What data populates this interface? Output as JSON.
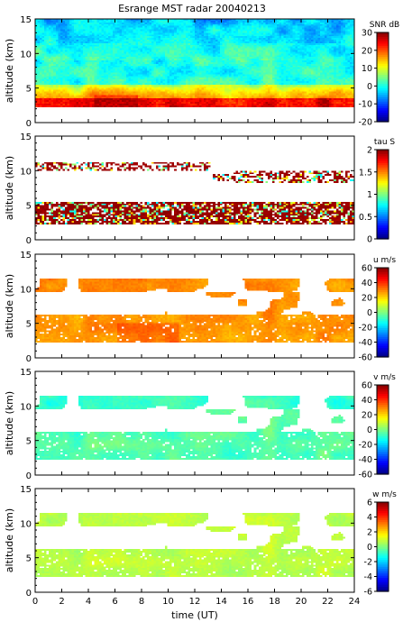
{
  "title": "Esrange MST radar 20040213",
  "chart_data": [
    {
      "type": "heatmap",
      "title": "Esrange MST radar 20040213",
      "ylabel": "altitude (km)",
      "xlabel": "",
      "xlim": [
        0,
        24
      ],
      "ylim": [
        0,
        15
      ],
      "y_ticks": [
        "0",
        "5",
        "10",
        "15"
      ],
      "colorbar": {
        "label": "SNR dB",
        "min": -20,
        "max": 30,
        "ticks": [
          "30",
          "20",
          "10",
          "0",
          "-10",
          "-20"
        ]
      },
      "pattern": "snr",
      "valid_altitude_km": [
        2.2,
        15
      ]
    },
    {
      "type": "heatmap",
      "ylabel": "altitude (km)",
      "xlabel": "",
      "xlim": [
        0,
        24
      ],
      "ylim": [
        0,
        15
      ],
      "y_ticks": [
        "0",
        "5",
        "10",
        "15"
      ],
      "colorbar": {
        "label": "tau S",
        "min": 0,
        "max": 2,
        "ticks": [
          "2",
          "1.5",
          "1",
          "0.5",
          "0"
        ]
      },
      "pattern": "tau",
      "valid_altitude_km": [
        2.2,
        12
      ]
    },
    {
      "type": "heatmap",
      "ylabel": "altitude (km)",
      "xlabel": "",
      "xlim": [
        0,
        24
      ],
      "ylim": [
        0,
        15
      ],
      "y_ticks": [
        "0",
        "5",
        "10",
        "15"
      ],
      "colorbar": {
        "label": "u m/s",
        "min": -60,
        "max": 60,
        "ticks": [
          "60",
          "40",
          "20",
          "0",
          "-20",
          "-40",
          "-60"
        ]
      },
      "pattern": "u",
      "valid_altitude_km": [
        2.2,
        12
      ]
    },
    {
      "type": "heatmap",
      "ylabel": "altitude (km)",
      "xlabel": "",
      "xlim": [
        0,
        24
      ],
      "ylim": [
        0,
        15
      ],
      "y_ticks": [
        "0",
        "5",
        "10",
        "15"
      ],
      "colorbar": {
        "label": "v m/s",
        "min": -60,
        "max": 60,
        "ticks": [
          "60",
          "40",
          "20",
          "0",
          "-20",
          "-40",
          "-60"
        ]
      },
      "pattern": "v",
      "valid_altitude_km": [
        2.2,
        12
      ]
    },
    {
      "type": "heatmap",
      "ylabel": "altitude (km)",
      "xlabel": "time (UT)",
      "xlim": [
        0,
        24
      ],
      "ylim": [
        0,
        15
      ],
      "y_ticks": [
        "0",
        "5",
        "10",
        "15"
      ],
      "x_ticks": [
        "0",
        "2",
        "4",
        "6",
        "8",
        "10",
        "12",
        "14",
        "16",
        "18",
        "20",
        "22",
        "24"
      ],
      "colorbar": {
        "label": "w m/s",
        "min": -6,
        "max": 6,
        "ticks": [
          "6",
          "4",
          "2",
          "0",
          "-2",
          "-4",
          "-6"
        ]
      },
      "pattern": "w",
      "valid_altitude_km": [
        2.2,
        12
      ]
    }
  ]
}
